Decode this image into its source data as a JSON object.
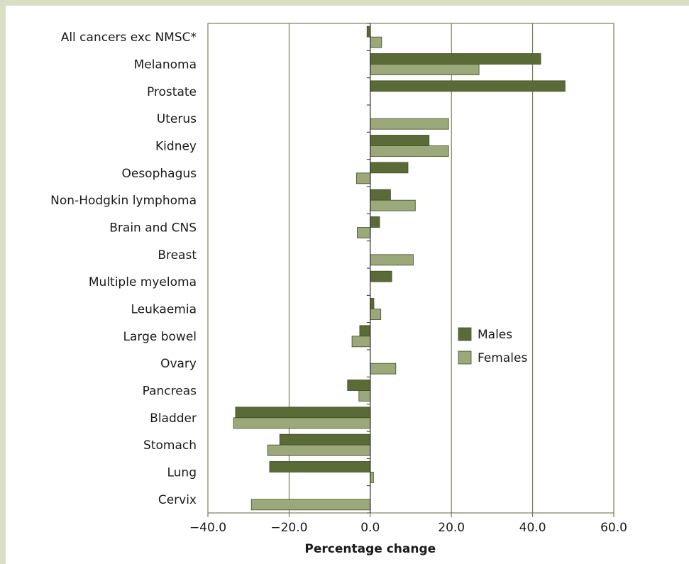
{
  "chart_data": {
    "type": "bar",
    "orientation": "horizontal",
    "categories": [
      "All cancers exc NMSC*",
      "Melanoma",
      "Prostate",
      "Uterus",
      "Kidney",
      "Oesophagus",
      "Non-Hodgkin lymphoma",
      "Brain and CNS",
      "Breast",
      "Multiple myeloma",
      "Leukaemia",
      "Large bowel",
      "Ovary",
      "Pancreas",
      "Bladder",
      "Stomach",
      "Lung",
      "Cervix"
    ],
    "series": [
      {
        "name": "Males",
        "color": "#5a6b38",
        "values": [
          -0.8,
          42.0,
          48.0,
          null,
          14.5,
          9.3,
          5.0,
          2.3,
          null,
          5.3,
          0.9,
          -2.6,
          null,
          -5.6,
          -33.2,
          -22.3,
          -24.8,
          null
        ]
      },
      {
        "name": "Females",
        "color": "#9aa87a",
        "values": [
          2.8,
          26.8,
          null,
          19.3,
          19.3,
          -3.4,
          11.1,
          -3.2,
          10.6,
          null,
          2.6,
          -4.5,
          6.3,
          -2.8,
          -33.7,
          -25.3,
          0.8,
          -29.3
        ]
      }
    ],
    "xlabel": "Percentage change",
    "xlim": [
      -40,
      60
    ],
    "xticks": [
      -40,
      -20,
      0,
      20,
      40,
      60
    ],
    "xtick_labels": [
      "−40.0",
      "−20.0",
      "0.0",
      "20.0",
      "40.0",
      "60.0"
    ],
    "grid": "vertical",
    "legend_position": "right-center"
  }
}
